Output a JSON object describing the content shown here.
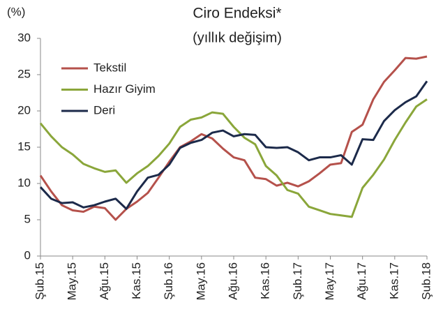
{
  "chart_data": {
    "type": "line",
    "title": "Ciro Endeksi*",
    "subtitle": "(yıllık değişim)",
    "y_axis_label": "(%)",
    "categories": [
      "Şub.15",
      null,
      null,
      "May.15",
      null,
      null,
      "Ağu.15",
      null,
      null,
      "Kas.15",
      null,
      null,
      "Şub.16",
      null,
      null,
      "May.16",
      null,
      null,
      "Ağu.16",
      null,
      null,
      "Kas.16",
      null,
      null,
      "Şub.17",
      null,
      null,
      "May.17",
      null,
      null,
      "Ağu.17",
      null,
      null,
      "Kas.17",
      null,
      null,
      "Şub.18"
    ],
    "series": [
      {
        "name": "Tekstil",
        "color": "#b5514b",
        "values": [
          11.1,
          8.9,
          7.0,
          6.3,
          6.1,
          6.8,
          6.6,
          5.0,
          6.5,
          7.5,
          8.7,
          10.8,
          13.0,
          15.0,
          15.8,
          16.8,
          16.2,
          14.8,
          13.6,
          13.2,
          10.8,
          10.6,
          9.7,
          10.1,
          9.6,
          10.3,
          11.4,
          12.6,
          12.8,
          17.1,
          18.1,
          21.6,
          24.0,
          25.6,
          27.3,
          27.2,
          27.5
        ]
      },
      {
        "name": "Hazır Giyim",
        "color": "#8aa63a",
        "values": [
          18.3,
          16.5,
          15.0,
          14.0,
          12.7,
          12.1,
          11.6,
          11.8,
          10.1,
          11.4,
          12.4,
          13.8,
          15.5,
          17.8,
          18.8,
          19.1,
          19.8,
          19.6,
          17.8,
          16.3,
          15.4,
          12.4,
          11.1,
          9.1,
          8.6,
          6.8,
          6.3,
          5.8,
          5.6,
          5.4,
          9.4,
          11.2,
          13.3,
          16.0,
          18.4,
          20.6,
          21.6
        ]
      },
      {
        "name": "Deri",
        "color": "#1c2a4a",
        "values": [
          9.5,
          7.9,
          7.3,
          7.4,
          6.7,
          7.0,
          7.5,
          7.9,
          6.5,
          8.9,
          10.8,
          11.2,
          12.6,
          14.9,
          15.6,
          16.0,
          17.0,
          17.3,
          16.5,
          16.8,
          16.7,
          15.0,
          14.9,
          15.0,
          14.3,
          13.2,
          13.6,
          13.6,
          13.9,
          12.6,
          16.1,
          16.0,
          18.6,
          20.1,
          21.2,
          22.0,
          24.1
        ]
      }
    ],
    "ylim": [
      0,
      30
    ],
    "yticks": [
      0,
      5,
      10,
      15,
      20,
      25,
      30
    ],
    "grid": false,
    "legend": "top-left"
  }
}
